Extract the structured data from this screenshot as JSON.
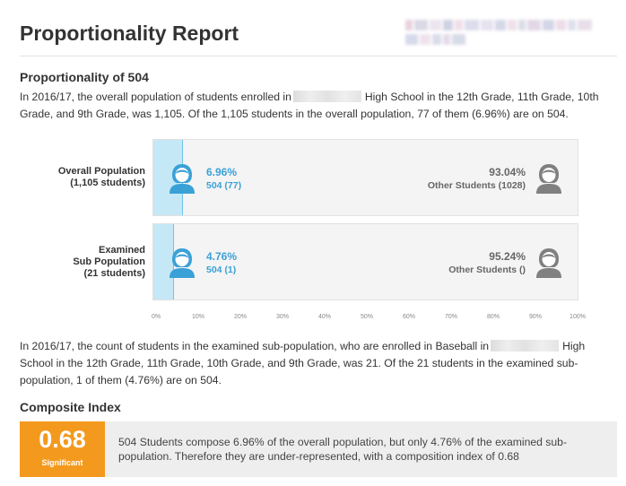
{
  "header": {
    "title": "Proportionality Report",
    "logo_colors": [
      "#e9d2dd",
      "#d9d9e7",
      "#ece4ee",
      "#cfd2e2",
      "#f1dfe8",
      "#dcdcec",
      "#e6e2ef",
      "#d5d8e8",
      "#efe0ea",
      "#dbdde9",
      "#e2d7e6",
      "#d3d6e6",
      "#ecdde8",
      "#dfe0ec",
      "#e8dfeb",
      "#d6d9e9",
      "#f0e2ec",
      "#dadcea",
      "#e4dbe8",
      "#d8dbe9"
    ]
  },
  "proportionality": {
    "heading": "Proportionality of 504",
    "intro_before": "In 2016/17, the overall population of students enrolled in",
    "intro_after": "High School in the 12th Grade, 11th Grade, 10th Grade, and 9th Grade, was 1,105. Of the 1,105 students in the overall population, 77 of them (6.96%) are on 504."
  },
  "chart": {
    "rows": [
      {
        "label_lines": [
          "Overall Population",
          "(1,105 students)"
        ],
        "group_pct": "6.96%",
        "group_detail": "504 (77)",
        "other_pct": "93.04%",
        "other_detail": "Other Students (1028)",
        "fill_percent": 6.96
      },
      {
        "label_lines": [
          "Examined",
          "Sub Population",
          "(21 students)"
        ],
        "group_pct": "4.76%",
        "group_detail": "504 (1)",
        "other_pct": "95.24%",
        "other_detail": "Other Students ()",
        "fill_percent": 4.76
      }
    ],
    "ticks": [
      "0%",
      "10%",
      "20%",
      "30%",
      "40%",
      "50%",
      "60%",
      "70%",
      "80%",
      "90%",
      "100%"
    ],
    "group_color": "#3aa1d7",
    "other_color": "#666666",
    "fill_color": "#c5e8f6"
  },
  "subpopulation": {
    "text_before": "In 2016/17, the count of students in the examined sub-population, who are enrolled in Baseball in",
    "text_after": "High School in the 12th Grade, 11th Grade, 10th Grade, and 9th Grade, was 21.  Of the 21 students in the examined sub-population, 1 of them (4.76%) are on 504."
  },
  "composite": {
    "heading": "Composite Index",
    "value": "0.68",
    "status": "Significant",
    "badge_color": "#f39a1e",
    "description": "504 Students compose 6.96% of the overall population, but only 4.76% of the examined sub-population. Therefore they are under-represented, with a composition index of 0.68"
  }
}
